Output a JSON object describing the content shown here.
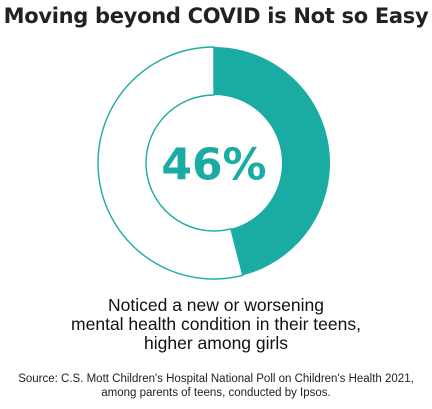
{
  "title": "Moving beyond COVID is Not so Easy",
  "colors": {
    "accent": "#1aaca3",
    "track_fill": "#ffffff",
    "track_stroke": "#1aaca3",
    "text": "#111111"
  },
  "chart_data": {
    "type": "pie",
    "style": "donut",
    "value": 46,
    "center_label": "46%",
    "slices": [
      {
        "value": 46
      },
      {
        "value": 54
      }
    ]
  },
  "caption_lines": [
    "Noticed a new or worsening",
    "mental health condition in their teens,",
    "higher among girls"
  ],
  "source_lines": [
    "Source: C.S. Mott Children's Hospital National Poll on Children's Health 2021,",
    "among parents of teens, conducted by Ipsos."
  ]
}
